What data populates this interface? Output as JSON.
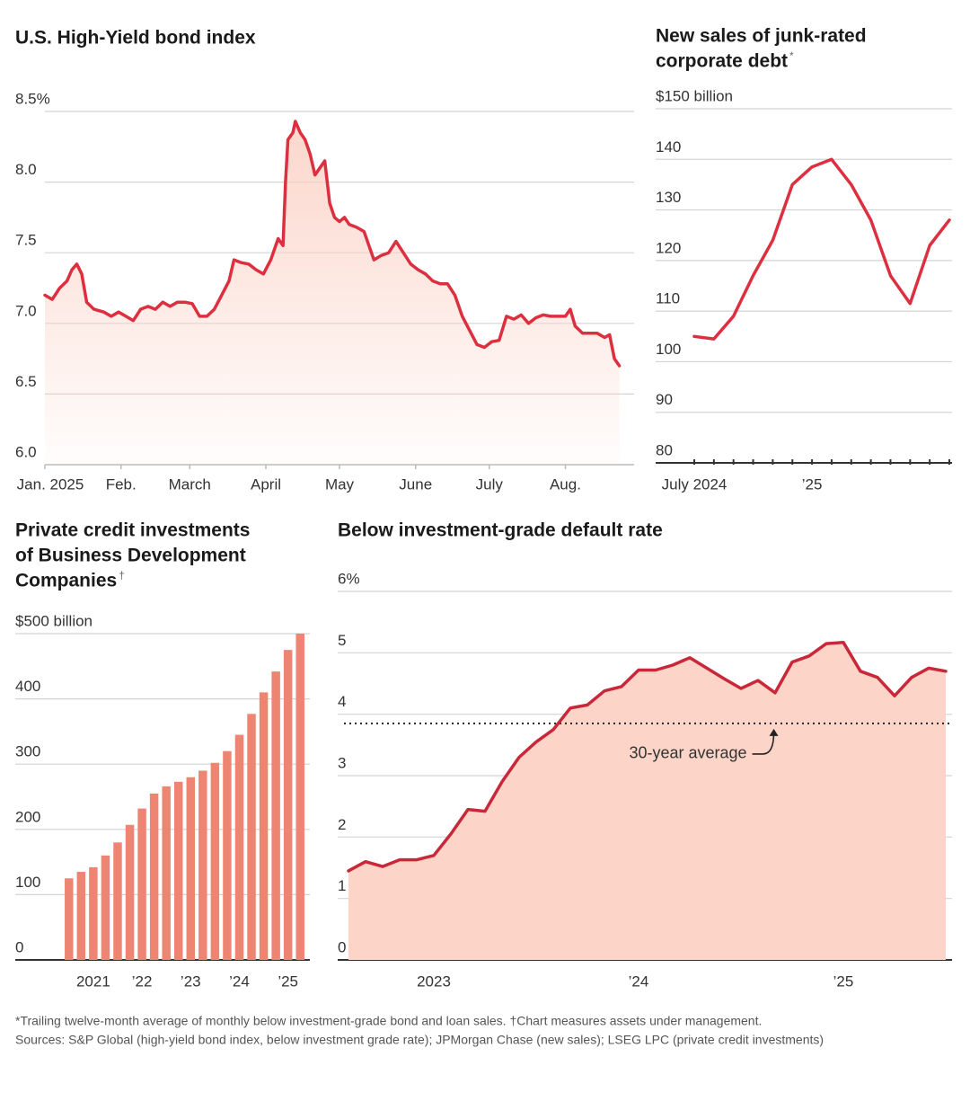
{
  "chart_data": [
    {
      "type": "line",
      "title": [
        "U.S. High-Yield bond index"
      ],
      "x": [
        0,
        3,
        6,
        9,
        11,
        13,
        15,
        17,
        20,
        24,
        27,
        30,
        33,
        36,
        39,
        42,
        45,
        48,
        51,
        54,
        57,
        60,
        63,
        66,
        69,
        72,
        75,
        77,
        80,
        83,
        86,
        89,
        92,
        95,
        97,
        98,
        99,
        101,
        102,
        104,
        106,
        108,
        110,
        112,
        114,
        116,
        118,
        120,
        122,
        124,
        127,
        130,
        132,
        134,
        137,
        140,
        143,
        146,
        149,
        152,
        155,
        158,
        161,
        164,
        167,
        170,
        173,
        176,
        179,
        182,
        185,
        188,
        191,
        194,
        197,
        200,
        203,
        206,
        209,
        212,
        214,
        216,
        219,
        222,
        225,
        228,
        230,
        232,
        234
      ],
      "values": [
        7.2,
        7.17,
        7.25,
        7.3,
        7.38,
        7.42,
        7.35,
        7.15,
        7.1,
        7.08,
        7.05,
        7.08,
        7.05,
        7.02,
        7.1,
        7.12,
        7.1,
        7.15,
        7.12,
        7.15,
        7.15,
        7.14,
        7.05,
        7.05,
        7.1,
        7.2,
        7.3,
        7.45,
        7.43,
        7.42,
        7.38,
        7.35,
        7.45,
        7.6,
        7.55,
        8.0,
        8.3,
        8.35,
        8.43,
        8.35,
        8.3,
        8.2,
        8.05,
        8.1,
        8.15,
        7.85,
        7.75,
        7.72,
        7.75,
        7.7,
        7.68,
        7.65,
        7.55,
        7.45,
        7.48,
        7.5,
        7.58,
        7.5,
        7.42,
        7.38,
        7.35,
        7.3,
        7.28,
        7.28,
        7.2,
        7.05,
        6.95,
        6.85,
        6.83,
        6.87,
        6.88,
        7.05,
        7.03,
        7.06,
        7.0,
        7.04,
        7.06,
        7.05,
        7.05,
        7.05,
        7.1,
        6.98,
        6.93,
        6.93,
        6.93,
        6.9,
        6.92,
        6.75,
        6.7
      ],
      "xlim": [
        0,
        240
      ],
      "xticks": [
        {
          "value": 0,
          "label": "Jan. 2025"
        },
        {
          "value": 31,
          "label": "Feb."
        },
        {
          "value": 59,
          "label": "March"
        },
        {
          "value": 90,
          "label": "April"
        },
        {
          "value": 120,
          "label": "May"
        },
        {
          "value": 151,
          "label": "June"
        },
        {
          "value": 181,
          "label": "July"
        },
        {
          "value": 212,
          "label": "Aug."
        }
      ],
      "ylim": [
        6,
        8.5
      ],
      "yticks": [
        {
          "value": 8.5,
          "label": "8.5%"
        },
        {
          "value": 8,
          "label": "8.0"
        },
        7.5,
        {
          "value": 7,
          "label": "7.0"
        },
        6.5,
        {
          "value": 6,
          "label": "6.0"
        }
      ],
      "color": "#dc3040",
      "area_fill": "#fbd2c6",
      "area_gradient": true,
      "grid": true
    },
    {
      "type": "line",
      "title": [
        "New sales of junk-rated",
        "corporate debt"
      ],
      "title_mark": "*",
      "categories": [
        "July 2024",
        null,
        null,
        null,
        null,
        null,
        "’25",
        null,
        null,
        null,
        null,
        null,
        null,
        null
      ],
      "values": [
        105,
        104.5,
        109,
        117,
        124,
        135,
        138.5,
        140,
        135,
        128,
        117,
        111.5,
        123,
        128
      ],
      "ylim": [
        80,
        150
      ],
      "yticks": [
        {
          "value": 150,
          "label": "$150 billion"
        },
        140,
        130,
        120,
        110,
        100,
        90,
        80
      ],
      "color": "#dc3040",
      "grid": true,
      "x_tick_marks": true
    },
    {
      "type": "bar",
      "title": [
        "Private credit investments",
        "of Business Development",
        "Companies"
      ],
      "title_mark": "†",
      "categories": [
        null,
        null,
        "2021",
        null,
        null,
        null,
        "’22",
        null,
        null,
        null,
        "’23",
        null,
        null,
        null,
        "’24",
        null,
        null,
        null,
        "’25",
        null
      ],
      "values": [
        125,
        135,
        142,
        160,
        180,
        207,
        232,
        255,
        266,
        273,
        280,
        290,
        302,
        320,
        345,
        377,
        410,
        442,
        475,
        500
      ],
      "ylim": [
        0,
        500
      ],
      "yticks": [
        {
          "value": 500,
          "label": "$500 billion"
        },
        400,
        300,
        200,
        100,
        0
      ],
      "color": "#ee8573",
      "grid": true
    },
    {
      "type": "area",
      "title": [
        "Below investment-grade default rate"
      ],
      "categories": [
        null,
        null,
        null,
        null,
        null,
        "2023",
        null,
        null,
        null,
        null,
        null,
        null,
        null,
        null,
        null,
        null,
        null,
        "’24",
        null,
        null,
        null,
        null,
        null,
        null,
        null,
        null,
        null,
        null,
        null,
        "’25",
        null,
        null,
        null,
        null,
        null,
        null
      ],
      "values": [
        1.45,
        1.6,
        1.52,
        1.63,
        1.63,
        1.7,
        2.05,
        2.45,
        2.42,
        2.9,
        3.3,
        3.55,
        3.75,
        4.1,
        4.15,
        4.38,
        4.45,
        4.72,
        4.72,
        4.8,
        4.92,
        4.75,
        4.58,
        4.42,
        4.55,
        4.35,
        4.85,
        4.95,
        5.15,
        5.17,
        4.7,
        4.6,
        4.3,
        4.6,
        4.75,
        4.7
      ],
      "ylim": [
        0,
        6
      ],
      "yticks": [
        {
          "value": 6,
          "label": "6%"
        },
        5,
        4,
        3,
        2,
        1,
        0
      ],
      "reference_line": {
        "value": 3.85,
        "label": "30-year average"
      },
      "color": "#c8283a",
      "area_fill": "#fcd5c8",
      "grid": true
    }
  ],
  "notes": [
    "*Trailing twelve-month average of monthly below investment-grade bond and loan sales. †Chart measures assets under management.",
    "Sources: S&P Global (high-yield bond index, below investment grade rate); JPMorgan Chase (new sales); LSEG LPC (private credit investments)"
  ]
}
